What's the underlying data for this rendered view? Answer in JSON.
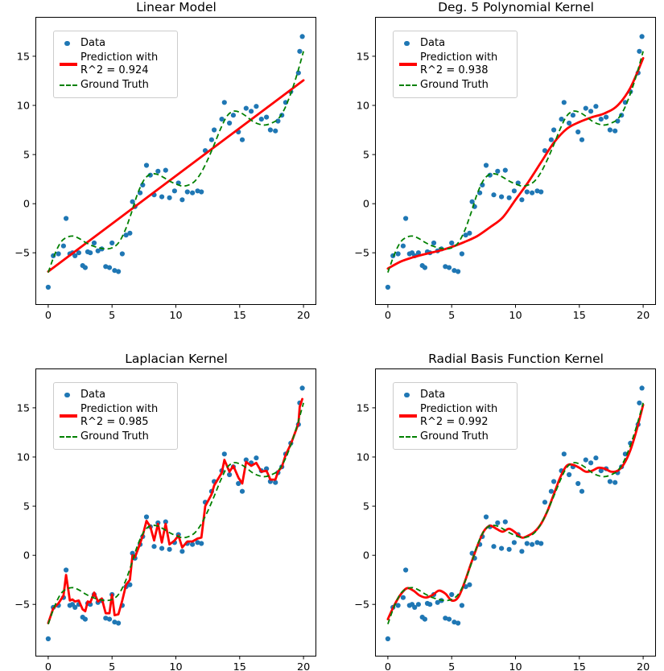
{
  "chart_data": {
    "type": "scatter",
    "figure_title": "",
    "x_range": [
      -1,
      21
    ],
    "y_range": [
      -10.3,
      19.0
    ],
    "x_ticks": [
      0,
      5,
      10,
      15,
      20
    ],
    "y_ticks": [
      -5,
      0,
      5,
      10,
      15
    ],
    "x_tick_labels": [
      "0",
      "5",
      "10",
      "15",
      "20"
    ],
    "y_tick_labels": [
      "−5",
      "0",
      "5",
      "10",
      "15"
    ],
    "grid": false,
    "legend_position": "upper left",
    "colors": {
      "data": "#1f77b4",
      "prediction": "#ff0000",
      "ground_truth": "#008000"
    },
    "scatter": {
      "x": [
        0.0,
        0.4,
        0.8,
        1.2,
        1.4,
        1.7,
        1.9,
        2.1,
        2.4,
        2.7,
        2.9,
        3.1,
        3.3,
        3.6,
        3.9,
        4.2,
        4.5,
        4.8,
        5.0,
        5.2,
        5.5,
        5.8,
        6.1,
        6.4,
        6.6,
        6.8,
        7.2,
        7.4,
        7.7,
        8.0,
        8.3,
        8.6,
        8.9,
        9.2,
        9.5,
        9.9,
        10.2,
        10.5,
        10.9,
        11.3,
        11.7,
        12.0,
        12.3,
        12.8,
        13.0,
        13.6,
        13.8,
        14.2,
        14.5,
        14.9,
        15.2,
        15.5,
        15.9,
        16.3,
        16.7,
        17.1,
        17.4,
        17.8,
        18.0,
        18.3,
        18.6,
        19.0,
        19.6,
        19.7,
        19.9
      ],
      "y": [
        -8.5,
        -5.3,
        -5.1,
        -4.3,
        -1.5,
        -5.1,
        -5.0,
        -5.3,
        -5.0,
        -6.3,
        -6.5,
        -4.9,
        -5.0,
        -4.0,
        -4.8,
        -4.6,
        -6.4,
        -6.5,
        -4.0,
        -6.8,
        -6.9,
        -5.1,
        -3.2,
        -3.0,
        0.2,
        -0.3,
        1.1,
        1.9,
        3.9,
        2.9,
        0.9,
        3.3,
        0.7,
        3.4,
        0.6,
        1.3,
        2.1,
        0.4,
        1.2,
        1.1,
        1.3,
        1.2,
        5.4,
        6.5,
        7.5,
        8.6,
        10.3,
        8.2,
        9.0,
        7.3,
        6.5,
        9.7,
        9.4,
        9.9,
        8.6,
        8.8,
        7.5,
        7.4,
        8.4,
        9.0,
        10.3,
        11.4,
        13.3,
        15.5,
        17.0
      ]
    },
    "ground_truth": {
      "x": [
        0,
        0.5,
        1,
        1.5,
        2,
        2.5,
        3,
        3.5,
        4,
        4.5,
        5,
        5.5,
        6,
        6.5,
        7,
        7.5,
        8,
        8.5,
        9,
        9.5,
        10,
        10.5,
        11,
        11.5,
        12,
        12.5,
        13,
        13.5,
        14,
        14.5,
        15,
        15.5,
        16,
        16.5,
        17,
        17.5,
        18,
        18.5,
        19,
        19.5,
        20
      ],
      "y": [
        -7.0,
        -5.2,
        -3.9,
        -3.4,
        -3.3,
        -3.6,
        -4.0,
        -4.3,
        -4.5,
        -4.6,
        -4.5,
        -4.0,
        -2.8,
        -1.0,
        1.0,
        2.4,
        3.0,
        3.0,
        2.7,
        2.3,
        2.0,
        1.8,
        1.9,
        2.3,
        3.2,
        4.5,
        6.0,
        7.6,
        8.9,
        9.4,
        9.3,
        8.9,
        8.4,
        8.1,
        8.0,
        8.2,
        8.6,
        9.6,
        11.2,
        13.2,
        15.5
      ]
    },
    "panels": [
      {
        "title": "Linear Model",
        "r_squared": 0.924,
        "prediction_style": "line",
        "legend": {
          "data_label": "Data",
          "prediction_label_line1": "Prediction with",
          "prediction_label_line2": "R^2 = 0.924",
          "ground_truth_label": "Ground Truth"
        },
        "prediction": {
          "x": [
            0,
            20
          ],
          "y": [
            -6.9,
            12.55
          ]
        }
      },
      {
        "title": "Deg. 5 Polynomial Kernel",
        "r_squared": 0.938,
        "prediction_style": "smooth",
        "legend": {
          "data_label": "Data",
          "prediction_label_line1": "Prediction with",
          "prediction_label_line2": "R^2 = 0.938",
          "ground_truth_label": "Ground Truth"
        },
        "prediction": {
          "x": [
            0,
            1,
            2,
            3,
            4,
            5,
            6,
            7,
            8,
            9,
            10,
            11,
            12,
            13,
            14,
            15,
            16,
            17,
            18,
            19,
            20
          ],
          "y": [
            -6.6,
            -5.9,
            -5.45,
            -5.1,
            -4.8,
            -4.4,
            -3.9,
            -3.3,
            -2.4,
            -1.4,
            0.4,
            2.2,
            4.2,
            6.2,
            7.6,
            8.3,
            8.8,
            9.2,
            10.0,
            11.8,
            14.8
          ]
        }
      },
      {
        "title": "Laplacian Kernel",
        "r_squared": 0.985,
        "prediction_style": "jagged",
        "legend": {
          "data_label": "Data",
          "prediction_label_line1": "Prediction with",
          "prediction_label_line2": "R^2 = 0.985",
          "ground_truth_label": "Ground Truth"
        },
        "prediction": {
          "x": [
            0.0,
            0.4,
            0.8,
            1.2,
            1.4,
            1.7,
            1.9,
            2.1,
            2.4,
            2.7,
            2.9,
            3.1,
            3.3,
            3.6,
            3.9,
            4.2,
            4.5,
            4.8,
            5.0,
            5.2,
            5.5,
            5.8,
            6.1,
            6.4,
            6.6,
            6.8,
            7.2,
            7.4,
            7.7,
            8.0,
            8.3,
            8.6,
            8.9,
            9.2,
            9.5,
            9.9,
            10.2,
            10.5,
            10.9,
            11.3,
            11.7,
            12.0,
            12.3,
            12.8,
            13.0,
            13.6,
            13.8,
            14.2,
            14.5,
            14.9,
            15.2,
            15.5,
            15.9,
            16.3,
            16.7,
            17.1,
            17.4,
            17.8,
            18.0,
            18.3,
            18.6,
            19.0,
            19.6,
            19.7,
            19.9
          ],
          "y": [
            -6.9,
            -5.4,
            -4.9,
            -4.1,
            -2.0,
            -4.6,
            -4.5,
            -4.7,
            -4.6,
            -5.5,
            -5.7,
            -4.7,
            -4.8,
            -3.8,
            -4.7,
            -4.4,
            -5.9,
            -5.9,
            -4.0,
            -6.1,
            -6.0,
            -4.6,
            -3.0,
            -2.5,
            0.0,
            -0.2,
            1.2,
            2.0,
            3.5,
            2.9,
            1.5,
            3.2,
            1.3,
            3.2,
            1.1,
            1.5,
            2.0,
            0.8,
            1.4,
            1.4,
            1.7,
            1.8,
            5.0,
            6.2,
            7.1,
            8.4,
            9.7,
            8.5,
            9.1,
            7.9,
            7.3,
            9.5,
            9.1,
            9.4,
            8.5,
            8.6,
            7.7,
            7.7,
            8.5,
            9.0,
            10.2,
            11.3,
            13.4,
            15.1,
            15.9
          ]
        }
      },
      {
        "title": "Radial Basis Function Kernel",
        "r_squared": 0.992,
        "prediction_style": "smooth",
        "legend": {
          "data_label": "Data",
          "prediction_label_line1": "Prediction with",
          "prediction_label_line2": "R^2 = 0.992",
          "ground_truth_label": "Ground Truth"
        },
        "prediction": {
          "x": [
            0,
            0.5,
            1,
            1.5,
            2,
            2.5,
            3,
            3.5,
            4,
            4.5,
            5,
            5.5,
            6,
            6.5,
            7,
            7.5,
            8,
            8.5,
            9,
            9.5,
            10,
            10.5,
            11,
            11.5,
            12,
            12.5,
            13,
            13.5,
            14,
            14.5,
            15,
            15.5,
            16,
            16.5,
            17,
            17.5,
            18,
            18.5,
            19,
            19.5,
            20
          ],
          "y": [
            -6.5,
            -5.1,
            -4.0,
            -3.35,
            -3.6,
            -4.1,
            -4.3,
            -4.05,
            -3.6,
            -3.9,
            -4.6,
            -4.3,
            -2.8,
            -0.9,
            0.9,
            2.4,
            3.0,
            2.7,
            2.4,
            2.7,
            2.3,
            1.8,
            2.0,
            2.4,
            3.2,
            4.5,
            6.2,
            7.9,
            9.1,
            9.2,
            8.9,
            8.5,
            8.6,
            8.9,
            8.8,
            8.5,
            8.6,
            9.3,
            10.7,
            12.8,
            15.3
          ]
        }
      }
    ]
  }
}
